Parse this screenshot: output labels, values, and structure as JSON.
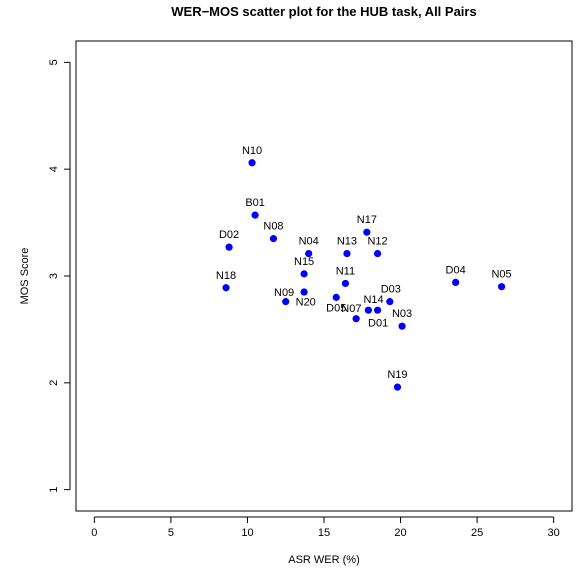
{
  "chart_data": {
    "type": "scatter",
    "title": "WER−MOS scatter plot for the HUB task, All Pairs",
    "xlabel": "ASR WER (%)",
    "ylabel": "MOS Score",
    "xlim": [
      -1.2,
      31.2
    ],
    "ylim": [
      0.8,
      5.2
    ],
    "xticks": [
      0,
      5,
      10,
      15,
      20,
      25,
      30
    ],
    "yticks": [
      1,
      2,
      3,
      4,
      5
    ],
    "grid": false,
    "point_color": "#0000ff",
    "points": [
      {
        "label": "N10",
        "x": 10.3,
        "y": 4.06
      },
      {
        "label": "B01",
        "x": 10.5,
        "y": 3.57
      },
      {
        "label": "N08",
        "x": 11.7,
        "y": 3.35
      },
      {
        "label": "D02",
        "x": 8.8,
        "y": 3.27
      },
      {
        "label": "N04",
        "x": 14.0,
        "y": 3.21
      },
      {
        "label": "N13",
        "x": 16.5,
        "y": 3.21
      },
      {
        "label": "N17",
        "x": 17.8,
        "y": 3.41
      },
      {
        "label": "N12",
        "x": 18.5,
        "y": 3.21
      },
      {
        "label": "N15",
        "x": 13.7,
        "y": 3.02
      },
      {
        "label": "N11",
        "x": 16.4,
        "y": 2.93
      },
      {
        "label": "N18",
        "x": 8.6,
        "y": 2.89
      },
      {
        "label": "N09",
        "x": 13.7,
        "y": 2.85
      },
      {
        "label": "N20",
        "x": 12.5,
        "y": 2.76
      },
      {
        "label": "D05",
        "x": 15.8,
        "y": 2.8
      },
      {
        "label": "N07",
        "x": 17.9,
        "y": 2.68
      },
      {
        "label": "N14",
        "x": 18.5,
        "y": 2.68
      },
      {
        "label": "D01",
        "x": 17.1,
        "y": 2.6
      },
      {
        "label": "D03",
        "x": 19.3,
        "y": 2.76
      },
      {
        "label": "N03",
        "x": 20.1,
        "y": 2.53
      },
      {
        "label": "D04",
        "x": 23.6,
        "y": 2.94
      },
      {
        "label": "N05",
        "x": 26.6,
        "y": 2.9
      },
      {
        "label": "N19",
        "x": 19.8,
        "y": 1.96
      }
    ]
  }
}
